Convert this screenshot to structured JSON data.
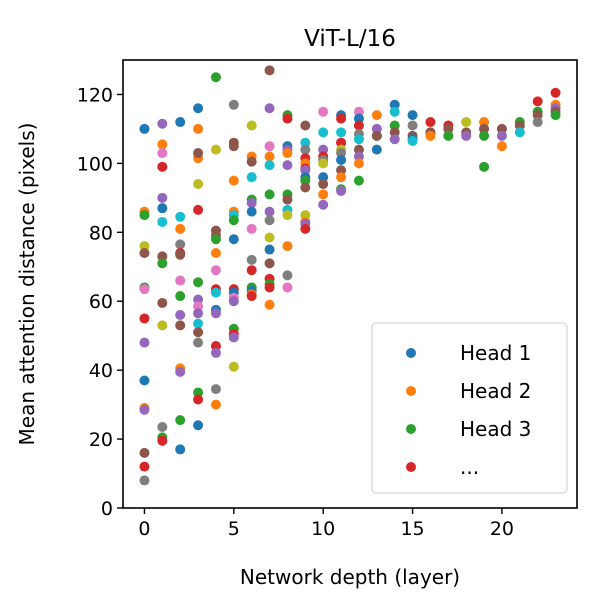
{
  "chart_data": {
    "type": "scatter",
    "title": "ViT-L/16",
    "xlabel": "Network depth (layer)",
    "ylabel": "Mean attention distance (pixels)",
    "xlim": [
      -1.2,
      24.2
    ],
    "ylim": [
      0,
      130
    ],
    "xticks": [
      "0",
      "5",
      "10",
      "15",
      "20"
    ],
    "yticks": [
      "0",
      "20",
      "40",
      "60",
      "80",
      "100",
      "120"
    ],
    "grid": false,
    "legend_position": "bottom-right",
    "legend": [
      {
        "label": "Head 1",
        "color": "#1f77b4"
      },
      {
        "label": "Head 2",
        "color": "#ff7f0e"
      },
      {
        "label": "Head 3",
        "color": "#2ca02c"
      },
      {
        "label": "...",
        "color": "#d62728"
      }
    ],
    "palette": [
      "#1f77b4",
      "#ff7f0e",
      "#2ca02c",
      "#d62728",
      "#9467bd",
      "#8c564b",
      "#e377c2",
      "#7f7f7f",
      "#bcbd22",
      "#17becf"
    ],
    "layers": [
      [
        [
          110,
          0
        ],
        [
          86,
          1
        ],
        [
          85,
          2
        ],
        [
          76,
          8
        ],
        [
          74,
          5
        ],
        [
          64,
          2
        ],
        [
          63.5,
          6
        ],
        [
          55,
          3
        ],
        [
          48,
          4
        ],
        [
          37,
          0
        ],
        [
          29,
          1
        ],
        [
          28.5,
          4
        ],
        [
          16,
          5
        ],
        [
          12,
          3
        ],
        [
          8,
          7
        ]
      ],
      [
        [
          111.5,
          4
        ],
        [
          105.5,
          1
        ],
        [
          103,
          6
        ],
        [
          99,
          3
        ],
        [
          90,
          4
        ],
        [
          87,
          0
        ],
        [
          83,
          9
        ],
        [
          73,
          5
        ],
        [
          71,
          2
        ],
        [
          59.5,
          5
        ],
        [
          53,
          8
        ],
        [
          23.5,
          7
        ],
        [
          20.5,
          2
        ],
        [
          19.5,
          3
        ]
      ],
      [
        [
          112,
          0
        ],
        [
          84.5,
          9
        ],
        [
          81,
          1
        ],
        [
          76.5,
          7
        ],
        [
          74,
          3
        ],
        [
          73.5,
          5
        ],
        [
          66,
          6
        ],
        [
          61.5,
          2
        ],
        [
          56,
          4
        ],
        [
          53,
          5
        ],
        [
          40.5,
          1
        ],
        [
          39.5,
          4
        ],
        [
          25.5,
          2
        ],
        [
          17,
          0
        ]
      ],
      [
        [
          116,
          0
        ],
        [
          110,
          1
        ],
        [
          101.5,
          1
        ],
        [
          103,
          5
        ],
        [
          94,
          8
        ],
        [
          86.5,
          3
        ],
        [
          65.5,
          2
        ],
        [
          60.5,
          4
        ],
        [
          58.5,
          6
        ],
        [
          56.5,
          4
        ],
        [
          53.5,
          9
        ],
        [
          51,
          5
        ],
        [
          48,
          7
        ],
        [
          33.5,
          2
        ],
        [
          31.5,
          3
        ],
        [
          24,
          0
        ]
      ],
      [
        [
          125,
          2
        ],
        [
          104,
          8
        ],
        [
          80.5,
          5
        ],
        [
          79,
          5
        ],
        [
          78,
          2
        ],
        [
          74,
          1
        ],
        [
          69,
          6
        ],
        [
          63.5,
          3
        ],
        [
          62.5,
          9
        ],
        [
          57.5,
          0
        ],
        [
          56.5,
          4
        ],
        [
          47,
          3
        ],
        [
          45,
          4
        ],
        [
          34.5,
          7
        ],
        [
          30,
          1
        ]
      ],
      [
        [
          117,
          7
        ],
        [
          106,
          5
        ],
        [
          105,
          5
        ],
        [
          95,
          1
        ],
        [
          86,
          1
        ],
        [
          85,
          9
        ],
        [
          83.5,
          2
        ],
        [
          78,
          0
        ],
        [
          63.5,
          3
        ],
        [
          62.5,
          0
        ],
        [
          61,
          6
        ],
        [
          60,
          4
        ],
        [
          52,
          2
        ],
        [
          50.5,
          3
        ],
        [
          49.5,
          4
        ],
        [
          41,
          8
        ]
      ],
      [
        [
          111,
          8
        ],
        [
          102,
          1
        ],
        [
          100.5,
          5
        ],
        [
          96,
          9
        ],
        [
          89.5,
          2
        ],
        [
          88.5,
          4
        ],
        [
          86,
          0
        ],
        [
          81,
          6
        ],
        [
          72,
          7
        ],
        [
          69,
          3
        ],
        [
          64,
          2
        ],
        [
          63,
          0
        ],
        [
          62,
          1
        ],
        [
          61.5,
          3
        ]
      ],
      [
        [
          127,
          5
        ],
        [
          116,
          4
        ],
        [
          105,
          6
        ],
        [
          102,
          1
        ],
        [
          99.5,
          9
        ],
        [
          91,
          2
        ],
        [
          86,
          4
        ],
        [
          83.5,
          7
        ],
        [
          78.5,
          8
        ],
        [
          75,
          0
        ],
        [
          71,
          5
        ],
        [
          66.5,
          3
        ],
        [
          65,
          2
        ],
        [
          64,
          3
        ],
        [
          59,
          1
        ]
      ],
      [
        [
          114,
          2
        ],
        [
          113,
          3
        ],
        [
          105,
          0
        ],
        [
          104,
          4
        ],
        [
          103,
          1
        ],
        [
          99.5,
          4
        ],
        [
          91,
          2
        ],
        [
          89.5,
          5
        ],
        [
          86.5,
          9
        ],
        [
          85,
          8
        ],
        [
          76,
          1
        ],
        [
          67.5,
          7
        ],
        [
          64,
          6
        ]
      ],
      [
        [
          111,
          5
        ],
        [
          106,
          9
        ],
        [
          104,
          7
        ],
        [
          101.5,
          3
        ],
        [
          100,
          1
        ],
        [
          98.5,
          3
        ],
        [
          98,
          4
        ],
        [
          96,
          0
        ],
        [
          95,
          2
        ],
        [
          93,
          5
        ],
        [
          85,
          8
        ],
        [
          83,
          1
        ],
        [
          82.5,
          4
        ],
        [
          81,
          3
        ]
      ],
      [
        [
          115,
          6
        ],
        [
          109,
          9
        ],
        [
          104,
          4
        ],
        [
          102,
          3
        ],
        [
          101,
          7
        ],
        [
          100,
          8
        ],
        [
          96,
          0
        ],
        [
          94,
          5
        ],
        [
          91,
          1
        ],
        [
          88,
          4
        ]
      ],
      [
        [
          114,
          0
        ],
        [
          113,
          3
        ],
        [
          109,
          9
        ],
        [
          106,
          4
        ],
        [
          106,
          3
        ],
        [
          104,
          8
        ],
        [
          103,
          7
        ],
        [
          101,
          0
        ],
        [
          98,
          5
        ],
        [
          96,
          1
        ],
        [
          92.5,
          2
        ],
        [
          92,
          4
        ]
      ],
      [
        [
          115,
          6
        ],
        [
          113,
          0
        ],
        [
          111,
          3
        ],
        [
          108.5,
          7
        ],
        [
          107,
          9
        ],
        [
          104,
          5
        ],
        [
          102,
          4
        ],
        [
          100,
          1
        ],
        [
          95,
          2
        ]
      ],
      [
        [
          114,
          1
        ],
        [
          110,
          4
        ],
        [
          108,
          2
        ],
        [
          108,
          5
        ],
        [
          104,
          0
        ]
      ],
      [
        [
          117,
          0
        ],
        [
          115,
          9
        ],
        [
          111,
          2
        ],
        [
          109,
          5
        ],
        [
          107,
          4
        ]
      ],
      [
        [
          114,
          0
        ],
        [
          111,
          7
        ],
        [
          108,
          5
        ],
        [
          107,
          0
        ],
        [
          106.5,
          9
        ]
      ],
      [
        [
          112,
          3
        ],
        [
          109,
          4
        ],
        [
          109,
          5
        ],
        [
          108,
          1
        ]
      ],
      [
        [
          111,
          3
        ],
        [
          110,
          5
        ],
        [
          108,
          2
        ]
      ],
      [
        [
          112,
          8
        ],
        [
          109,
          5
        ],
        [
          108,
          4
        ]
      ],
      [
        [
          112,
          1
        ],
        [
          110,
          5
        ],
        [
          108,
          2
        ],
        [
          99,
          2
        ]
      ],
      [
        [
          110,
          5
        ],
        [
          108,
          4
        ],
        [
          105,
          1
        ]
      ],
      [
        [
          112,
          2
        ],
        [
          111,
          5
        ],
        [
          109,
          9
        ]
      ],
      [
        [
          118,
          3
        ],
        [
          115,
          2
        ],
        [
          114,
          5
        ],
        [
          112,
          7
        ]
      ],
      [
        [
          120.5,
          3
        ],
        [
          117,
          1
        ],
        [
          116,
          4
        ],
        [
          115,
          5
        ],
        [
          114,
          2
        ]
      ]
    ]
  }
}
